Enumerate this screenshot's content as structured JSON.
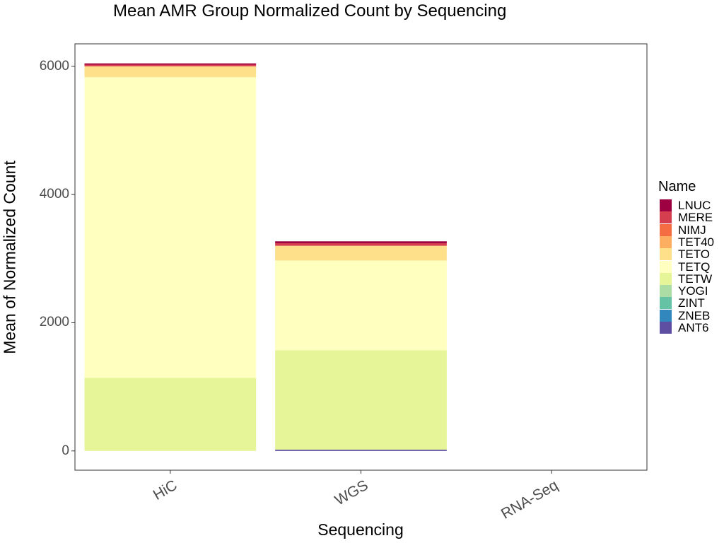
{
  "chart_data": {
    "type": "bar",
    "stacked": true,
    "title": "Mean AMR Group Normalized Count by Sequencing",
    "xlabel": "Sequencing",
    "ylabel": "Mean of Normalized Count",
    "categories": [
      "HiC",
      "WGS",
      "RNA-Seq"
    ],
    "ylim": [
      -300,
      6350
    ],
    "yticks": [
      0,
      2000,
      4000,
      6000
    ],
    "grid": false,
    "legend_title": "Name",
    "legend_position": "right",
    "series": [
      {
        "name": "LNUC",
        "color": "#9E0142",
        "values": [
          20,
          30,
          0
        ]
      },
      {
        "name": "MERE",
        "color": "#D53E4F",
        "values": [
          25,
          40,
          0
        ]
      },
      {
        "name": "NIMJ",
        "color": "#F46D43",
        "values": [
          0,
          0,
          0
        ]
      },
      {
        "name": "TET40",
        "color": "#FDAE61",
        "values": [
          0,
          0,
          0
        ]
      },
      {
        "name": "TETO",
        "color": "#FEE08B",
        "values": [
          170,
          230,
          0
        ]
      },
      {
        "name": "TETQ",
        "color": "#FFFFBF",
        "values": [
          4690,
          1400,
          0
        ]
      },
      {
        "name": "TETW",
        "color": "#E6F598",
        "values": [
          1140,
          1550,
          0
        ]
      },
      {
        "name": "YOGI",
        "color": "#ABDDA4",
        "values": [
          0,
          0,
          0
        ]
      },
      {
        "name": "ZINT",
        "color": "#66C2A5",
        "values": [
          0,
          0,
          0
        ]
      },
      {
        "name": "ZNEB",
        "color": "#3288BD",
        "values": [
          0,
          0,
          0
        ]
      },
      {
        "name": "ANT6",
        "color": "#5E4FA2",
        "values": [
          0,
          20,
          0
        ]
      }
    ]
  }
}
